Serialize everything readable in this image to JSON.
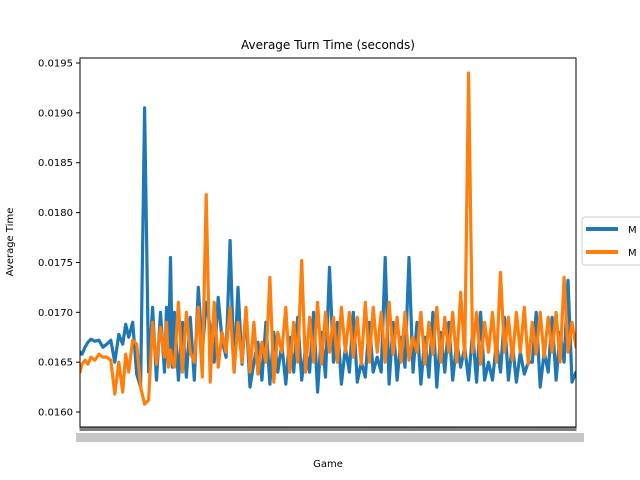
{
  "chart_data": {
    "type": "line",
    "title": "Average Turn Time (seconds)",
    "xlabel": "Game",
    "ylabel": "Average Time",
    "ylim": [
      0.01585,
      0.01955
    ],
    "xlim": [
      1,
      500
    ],
    "yticks": [
      "0.0160",
      "0.0165",
      "0.0170",
      "0.0175",
      "0.0180",
      "0.0185",
      "0.0190",
      "0.0195"
    ],
    "grid": false,
    "legend_position": "right, partially clipped",
    "colors": {
      "series1": "#1f77b4",
      "series2": "#ff7f0e"
    },
    "series": [
      {
        "name": "M",
        "x": [
          1,
          3,
          6,
          9,
          12,
          16,
          20,
          24,
          28,
          32,
          36,
          40,
          44,
          47,
          50,
          54,
          58,
          62,
          66,
          70,
          74,
          78,
          82,
          86,
          88,
          90,
          92,
          94,
          96,
          100,
          104,
          108,
          112,
          116,
          120,
          124,
          128,
          132,
          136,
          140,
          144,
          148,
          152,
          156,
          160,
          164,
          168,
          172,
          176,
          180,
          184,
          188,
          192,
          196,
          200,
          204,
          208,
          212,
          216,
          220,
          224,
          228,
          232,
          236,
          240,
          244,
          248,
          252,
          256,
          260,
          264,
          268,
          272,
          276,
          280,
          284,
          288,
          292,
          296,
          300,
          304,
          308,
          312,
          316,
          320,
          324,
          328,
          332,
          336,
          340,
          344,
          348,
          352,
          356,
          360,
          364,
          368,
          372,
          376,
          380,
          384,
          388,
          392,
          396,
          400,
          404,
          408,
          412,
          416,
          420,
          424,
          428,
          432,
          436,
          440,
          444,
          448,
          452,
          456,
          460,
          464,
          468,
          472,
          476,
          480,
          484,
          488,
          492,
          496,
          500
        ],
        "values": [
          0.0166,
          0.01658,
          0.01665,
          0.0167,
          0.01673,
          0.01671,
          0.01672,
          0.01665,
          0.01668,
          0.01672,
          0.0165,
          0.01678,
          0.01668,
          0.01688,
          0.01675,
          0.0169,
          0.01638,
          0.01625,
          0.01905,
          0.0164,
          0.01705,
          0.01632,
          0.017,
          0.0164,
          0.01705,
          0.0165,
          0.01755,
          0.01645,
          0.017,
          0.01632,
          0.0169,
          0.01635,
          0.01695,
          0.01632,
          0.01725,
          0.0166,
          0.0171,
          0.01685,
          0.0165,
          0.01715,
          0.01672,
          0.01655,
          0.01772,
          0.0164,
          0.01725,
          0.01648,
          0.017,
          0.01625,
          0.0165,
          0.0167,
          0.01632,
          0.0169,
          0.01628,
          0.0168,
          0.0164,
          0.01668,
          0.01628,
          0.01675,
          0.0164,
          0.01695,
          0.01632,
          0.01665,
          0.0164,
          0.017,
          0.0162,
          0.0168,
          0.01635,
          0.01745,
          0.0165,
          0.0169,
          0.01628,
          0.01665,
          0.0164,
          0.017,
          0.0163,
          0.0165,
          0.01635,
          0.0169,
          0.0164,
          0.01655,
          0.0164,
          0.01755,
          0.01628,
          0.0169,
          0.01632,
          0.01675,
          0.01645,
          0.01755,
          0.0164,
          0.0169,
          0.01628,
          0.01675,
          0.01635,
          0.017,
          0.01625,
          0.0168,
          0.0164,
          0.0169,
          0.01632,
          0.0167,
          0.01645,
          0.01665,
          0.01632,
          0.0168,
          0.0163,
          0.017,
          0.01632,
          0.0165,
          0.01632,
          0.0167,
          0.0164,
          0.01695,
          0.01632,
          0.01668,
          0.0163,
          0.0166,
          0.01638,
          0.0165,
          0.0165,
          0.017,
          0.01625,
          0.0166,
          0.0164,
          0.01695,
          0.01632,
          0.0168,
          0.0165,
          0.01732,
          0.0163,
          0.0164
        ]
      },
      {
        "name": "M",
        "x": [
          1,
          3,
          6,
          9,
          12,
          16,
          20,
          24,
          28,
          32,
          36,
          40,
          44,
          47,
          50,
          54,
          58,
          62,
          66,
          70,
          74,
          78,
          82,
          86,
          88,
          90,
          92,
          94,
          96,
          100,
          104,
          108,
          112,
          116,
          120,
          124,
          128,
          132,
          136,
          140,
          144,
          148,
          152,
          156,
          160,
          164,
          168,
          172,
          176,
          180,
          184,
          188,
          192,
          196,
          200,
          204,
          208,
          212,
          216,
          220,
          224,
          228,
          232,
          236,
          240,
          244,
          248,
          252,
          256,
          260,
          264,
          268,
          272,
          276,
          280,
          284,
          288,
          292,
          296,
          300,
          304,
          308,
          312,
          316,
          320,
          324,
          328,
          332,
          336,
          340,
          344,
          348,
          352,
          356,
          360,
          364,
          368,
          372,
          376,
          380,
          384,
          388,
          392,
          396,
          400,
          404,
          408,
          412,
          416,
          420,
          424,
          428,
          432,
          436,
          440,
          444,
          448,
          452,
          456,
          460,
          464,
          468,
          472,
          476,
          480,
          484,
          488,
          492,
          496,
          500
        ],
        "values": [
          0.0164,
          0.01648,
          0.01652,
          0.01648,
          0.01655,
          0.01652,
          0.01658,
          0.01655,
          0.01655,
          0.01652,
          0.01618,
          0.0165,
          0.0162,
          0.01658,
          0.0164,
          0.01672,
          0.01668,
          0.01625,
          0.01608,
          0.01612,
          0.0169,
          0.01648,
          0.01685,
          0.01655,
          0.0169,
          0.01645,
          0.01662,
          0.0165,
          0.01645,
          0.0171,
          0.0164,
          0.017,
          0.0166,
          0.0165,
          0.01705,
          0.01635,
          0.01818,
          0.0163,
          0.0171,
          0.01645,
          0.0168,
          0.0166,
          0.01705,
          0.0164,
          0.0169,
          0.0165,
          0.01705,
          0.0164,
          0.0169,
          0.01638,
          0.0167,
          0.0165,
          0.01735,
          0.0163,
          0.0168,
          0.0166,
          0.01705,
          0.0164,
          0.0169,
          0.0165,
          0.01752,
          0.0164,
          0.01695,
          0.0165,
          0.0171,
          0.01648,
          0.017,
          0.0166,
          0.01695,
          0.0165,
          0.01705,
          0.0166,
          0.017,
          0.01655,
          0.01695,
          0.01648,
          0.0171,
          0.0165,
          0.01705,
          0.0166,
          0.017,
          0.0165,
          0.0171,
          0.01658,
          0.01695,
          0.0165,
          0.017,
          0.01652,
          0.01675,
          0.0166,
          0.017,
          0.01648,
          0.0169,
          0.01658,
          0.01705,
          0.0165,
          0.01695,
          0.0166,
          0.017,
          0.0165,
          0.0172,
          0.01655,
          0.0194,
          0.0166,
          0.017,
          0.01648,
          0.0169,
          0.0166,
          0.017,
          0.0165,
          0.0174,
          0.0166,
          0.01695,
          0.01652,
          0.017,
          0.0166,
          0.01705,
          0.01648,
          0.0169,
          0.01658,
          0.017,
          0.01655,
          0.01695,
          0.0166,
          0.017,
          0.0165,
          0.01735,
          0.0166,
          0.0169,
          0.01665
        ]
      }
    ]
  }
}
